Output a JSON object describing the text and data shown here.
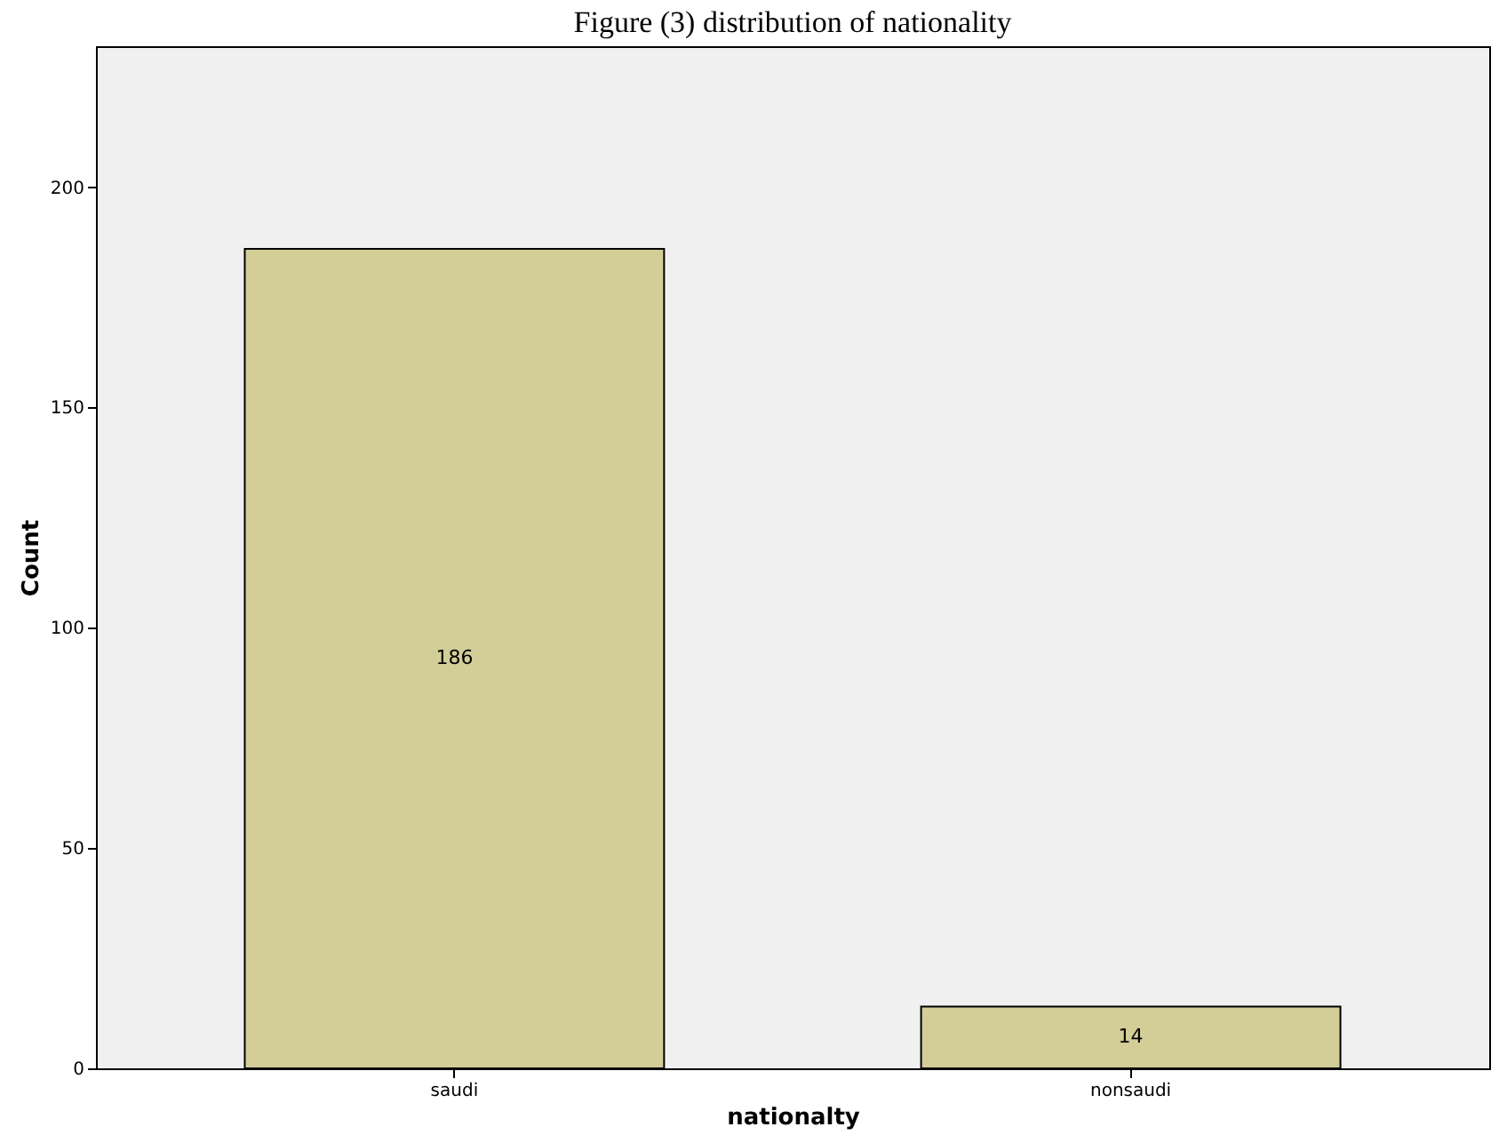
{
  "chart_data": {
    "type": "bar",
    "title": "Figure (3) distribution of nationality",
    "xlabel": "nationalty",
    "ylabel": "Count",
    "categories": [
      "saudi",
      "nonsaudi"
    ],
    "values": [
      186,
      14
    ],
    "color": "#d3ce97",
    "ylim": [
      0,
      232
    ],
    "yticks": [
      0,
      50,
      100,
      150,
      200
    ],
    "grid": false,
    "data_labels": true
  }
}
